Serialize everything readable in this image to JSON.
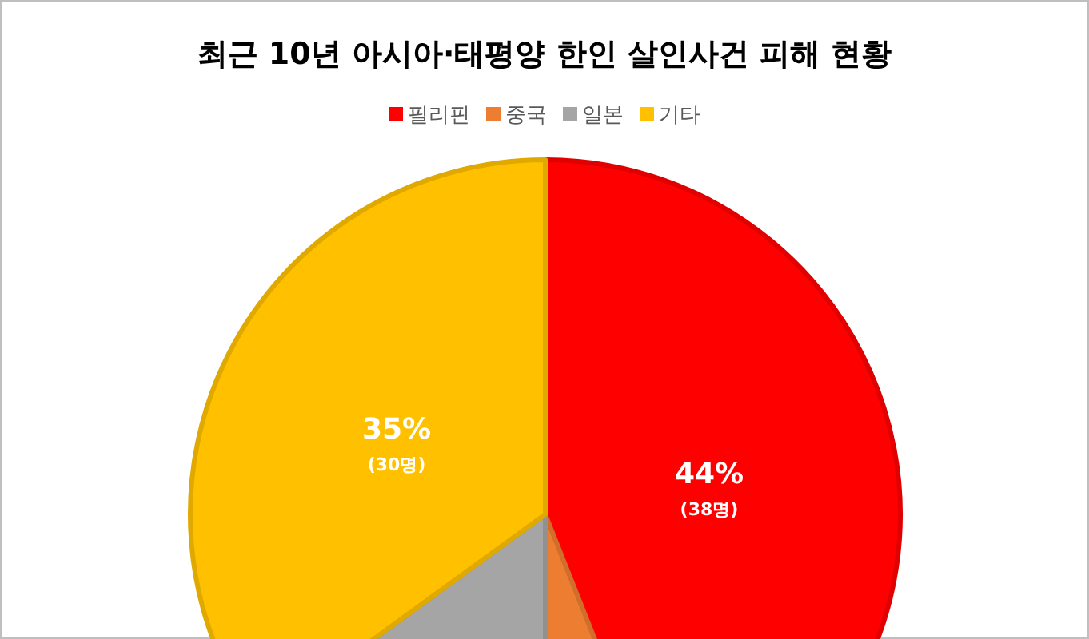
{
  "chart_data": {
    "type": "pie",
    "title": "최근 10년 아시아·태평양 한인 살인사건 피해 현황",
    "legend": "top",
    "categories": [
      "필리핀",
      "중국",
      "일본",
      "기타"
    ],
    "values": [
      44,
      6,
      15,
      35
    ],
    "colors": [
      "#ff0000",
      "#ed7d31",
      "#a5a5a5",
      "#ffc000"
    ],
    "value_labels": [
      "44%\n(38명)",
      null,
      null,
      "35%\n(30명)"
    ]
  }
}
